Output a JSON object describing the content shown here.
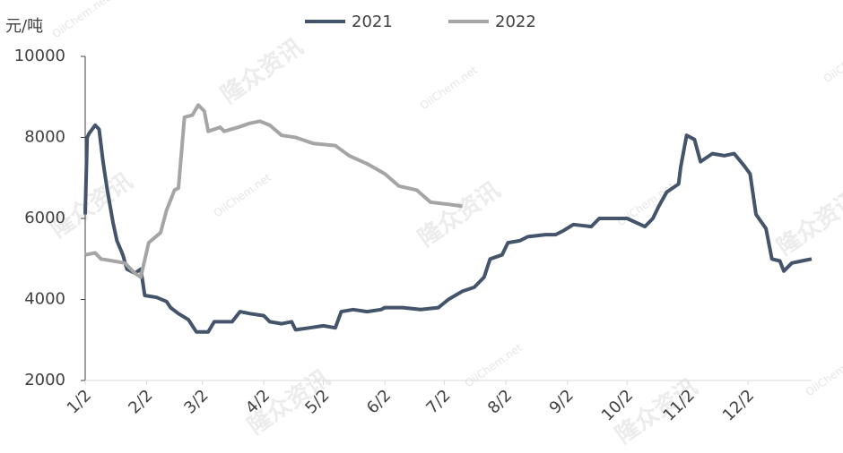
{
  "chart_data": {
    "type": "line",
    "y_unit": "元/吨",
    "watermarks": [
      "隆众资讯",
      "OilChem.net"
    ],
    "series": [
      {
        "name": "2021",
        "color": "#44546a",
        "x": [
          0,
          1,
          2,
          5,
          7,
          9,
          11,
          14,
          16,
          19,
          21,
          25,
          28,
          30,
          36,
          41,
          43,
          47,
          52,
          56,
          62,
          65,
          74,
          78,
          83,
          90,
          93,
          99,
          104,
          106,
          113,
          120,
          126,
          129,
          135,
          142,
          149,
          151,
          160,
          169,
          178,
          183,
          190,
          196,
          201,
          204,
          210,
          213,
          219,
          223,
          232,
          237,
          241,
          246,
          255,
          259,
          268,
          273,
          282,
          286,
          289,
          293,
          299,
          300,
          303,
          307,
          310,
          316,
          322,
          327,
          332,
          335,
          338,
          343,
          346,
          350,
          352,
          356,
          361,
          366
        ],
        "values": [
          6100,
          8000,
          8100,
          8300,
          8200,
          7400,
          6750,
          5900,
          5450,
          5100,
          4750,
          4650,
          4750,
          4100,
          4050,
          3950,
          3800,
          3650,
          3500,
          3200,
          3200,
          3450,
          3450,
          3700,
          3650,
          3600,
          3450,
          3400,
          3450,
          3250,
          3300,
          3350,
          3300,
          3700,
          3750,
          3700,
          3750,
          3800,
          3800,
          3750,
          3800,
          4000,
          4200,
          4300,
          4550,
          5000,
          5100,
          5400,
          5450,
          5550,
          5600,
          5600,
          5700,
          5850,
          5800,
          6000,
          6000,
          6000,
          5800,
          6000,
          6300,
          6650,
          6850,
          7250,
          8050,
          7950,
          7400,
          7600,
          7550,
          7600,
          7300,
          7100,
          6100,
          5750,
          5000,
          4950,
          4700,
          4900,
          4950,
          5000
        ]
      },
      {
        "name": "2022",
        "color": "#a5a5a5",
        "x": [
          0,
          5,
          8,
          14,
          20,
          25,
          28,
          32,
          38,
          41,
          45,
          47,
          50,
          54,
          57,
          60,
          62,
          68,
          70,
          77,
          83,
          88,
          93,
          99,
          106,
          115,
          126,
          133,
          142,
          151,
          158,
          167,
          174,
          183,
          190
        ],
        "values": [
          5100,
          5150,
          5000,
          4950,
          4900,
          4650,
          4550,
          5400,
          5650,
          6200,
          6700,
          6750,
          8500,
          8550,
          8800,
          8650,
          8150,
          8250,
          8150,
          8250,
          8350,
          8400,
          8300,
          8050,
          8000,
          7850,
          7800,
          7550,
          7350,
          7100,
          6800,
          6700,
          6400,
          6350,
          6300
        ]
      }
    ],
    "xlim": [
      0,
      366
    ],
    "xticks": [
      {
        "value": 0,
        "label": "1/2"
      },
      {
        "value": 31,
        "label": "2/2"
      },
      {
        "value": 59,
        "label": "3/2"
      },
      {
        "value": 90,
        "label": "4/2"
      },
      {
        "value": 120,
        "label": "5/2"
      },
      {
        "value": 151,
        "label": "6/2"
      },
      {
        "value": 181,
        "label": "7/2"
      },
      {
        "value": 212,
        "label": "8/2"
      },
      {
        "value": 243,
        "label": "9/2"
      },
      {
        "value": 273,
        "label": "10/2"
      },
      {
        "value": 304,
        "label": "11/2"
      },
      {
        "value": 334,
        "label": "12/2"
      }
    ],
    "ylim": [
      2000,
      10000
    ],
    "yticks": [
      2000,
      4000,
      6000,
      8000,
      10000
    ]
  }
}
